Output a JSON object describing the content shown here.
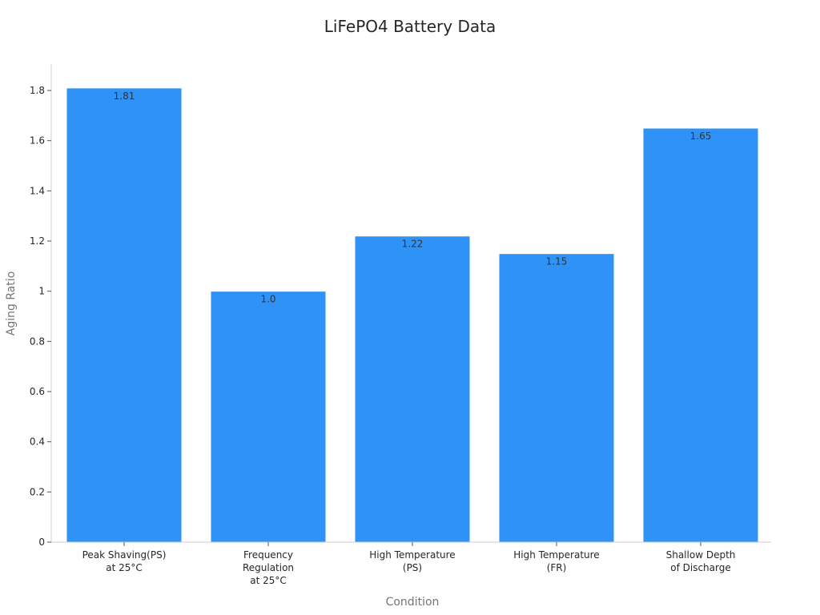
{
  "chart_data": {
    "type": "bar",
    "title": "LiFePO4 Battery Data",
    "xlabel": "Condition",
    "ylabel": "Aging Ratio",
    "categories": [
      [
        "Peak Shaving(PS)",
        "at 25°C"
      ],
      [
        "Frequency",
        "Regulation",
        "at 25°C"
      ],
      [
        "High Temperature",
        "(PS)"
      ],
      [
        "High Temperature",
        "(FR)"
      ],
      [
        "Shallow Depth",
        "of Discharge"
      ]
    ],
    "values": [
      1.81,
      1.0,
      1.22,
      1.15,
      1.65
    ],
    "value_labels": [
      "1.81",
      "1.0",
      "1.22",
      "1.15",
      "1.65"
    ],
    "ylim": [
      0,
      1.9
    ],
    "yticks": [
      0,
      0.2,
      0.4,
      0.6,
      0.8,
      1,
      1.2,
      1.4,
      1.6,
      1.8
    ],
    "ytick_labels": [
      "0",
      "0.2",
      "0.4",
      "0.6",
      "0.8",
      "1",
      "1.2",
      "1.4",
      "1.6",
      "1.8"
    ],
    "bar_color": "#2f92f7",
    "bar_edge_color": "#ffffff",
    "grid": false,
    "legend": false
  }
}
